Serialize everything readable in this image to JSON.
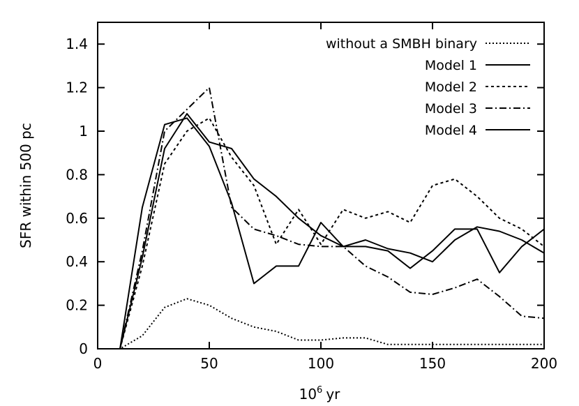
{
  "chart_data": {
    "type": "line",
    "title": "",
    "xlabel_base": "10",
    "xlabel_exp": "6",
    "xlabel_unit": "yr",
    "ylabel": "SFR within 500 pc",
    "xlim": [
      0,
      200
    ],
    "ylim": [
      0,
      1.5
    ],
    "xticks": [
      0,
      50,
      100,
      150,
      200
    ],
    "yticks": [
      0,
      0.2,
      0.4,
      0.6,
      0.8,
      1,
      1.2,
      1.4
    ],
    "xtick_labels": [
      "0",
      "50",
      "100",
      "150",
      "200"
    ],
    "ytick_labels": [
      "0",
      "0.2",
      "0.4",
      "0.6",
      "0.8",
      "1",
      "1.2",
      "1.4"
    ],
    "grid": false,
    "legend_position": "top-right",
    "series": [
      {
        "name": "without a SMBH binary",
        "dash": "2,3",
        "x": [
          0,
          10,
          20,
          30,
          40,
          50,
          60,
          70,
          80,
          90,
          100,
          110,
          120,
          130,
          140,
          150,
          160,
          170,
          180,
          190,
          200
        ],
        "y": [
          0,
          0,
          0.06,
          0.19,
          0.23,
          0.2,
          0.14,
          0.1,
          0.08,
          0.04,
          0.04,
          0.05,
          0.05,
          0.02,
          0.02,
          0.02,
          0.02,
          0.02,
          0.02,
          0.02,
          0.02
        ]
      },
      {
        "name": "Model 1",
        "dash": "",
        "x": [
          0,
          10,
          20,
          30,
          40,
          50,
          60,
          70,
          80,
          90,
          100,
          110,
          120,
          130,
          140,
          150,
          160,
          170,
          180,
          190,
          200
        ],
        "y": [
          0,
          0,
          0.65,
          1.03,
          1.06,
          0.93,
          0.67,
          0.3,
          0.38,
          0.38,
          0.58,
          0.47,
          0.47,
          0.45,
          0.37,
          0.45,
          0.55,
          0.55,
          0.35,
          0.47,
          0.55
        ]
      },
      {
        "name": "Model 2",
        "dash": "4,4",
        "x": [
          0,
          10,
          20,
          30,
          40,
          50,
          60,
          70,
          80,
          90,
          100,
          110,
          120,
          130,
          140,
          150,
          160,
          170,
          180,
          190,
          200
        ],
        "y": [
          0,
          0,
          0.38,
          0.85,
          1.0,
          1.06,
          0.88,
          0.75,
          0.48,
          0.64,
          0.48,
          0.64,
          0.6,
          0.63,
          0.58,
          0.75,
          0.78,
          0.7,
          0.6,
          0.55,
          0.47
        ]
      },
      {
        "name": "Model 3",
        "dash": "10,4,2,4",
        "x": [
          0,
          10,
          20,
          30,
          40,
          50,
          60,
          70,
          80,
          90,
          100,
          110,
          120,
          130,
          140,
          150,
          160,
          170,
          180,
          190,
          200
        ],
        "y": [
          0,
          0,
          0.45,
          1.0,
          1.1,
          1.2,
          0.65,
          0.55,
          0.52,
          0.48,
          0.47,
          0.47,
          0.38,
          0.33,
          0.26,
          0.25,
          0.28,
          0.32,
          0.24,
          0.15,
          0.14
        ]
      },
      {
        "name": "Model 4",
        "dash": "",
        "x": [
          0,
          10,
          20,
          30,
          40,
          50,
          60,
          70,
          80,
          90,
          100,
          110,
          120,
          130,
          140,
          150,
          160,
          170,
          180,
          190,
          200
        ],
        "y": [
          0,
          0,
          0.42,
          0.92,
          1.08,
          0.95,
          0.92,
          0.78,
          0.7,
          0.6,
          0.52,
          0.47,
          0.5,
          0.46,
          0.44,
          0.4,
          0.5,
          0.56,
          0.54,
          0.5,
          0.44
        ]
      }
    ]
  }
}
